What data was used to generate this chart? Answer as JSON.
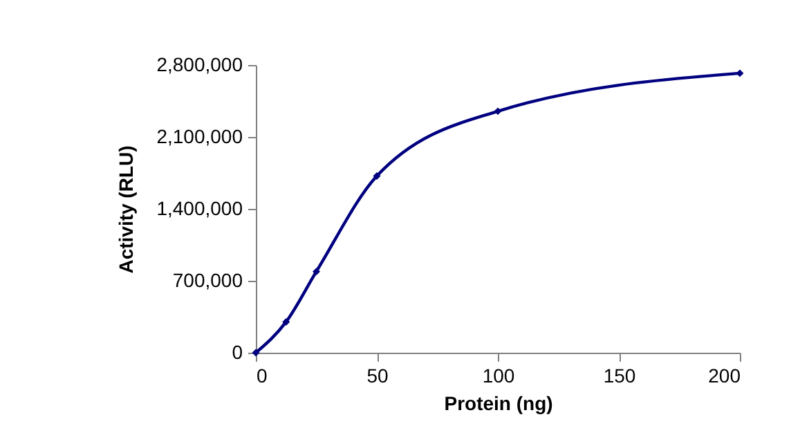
{
  "chart_data": {
    "type": "line",
    "xlabel": "Protein (ng)",
    "ylabel": "Activity (RLU)",
    "x": [
      0,
      12.5,
      25,
      50,
      100,
      200
    ],
    "series": [
      {
        "color": "#000080",
        "values": [
          0,
          300000,
          790000,
          1720000,
          2350000,
          2720000
        ]
      }
    ],
    "xlim": [
      0,
      200
    ],
    "xticks": [
      0,
      50,
      100,
      150,
      200
    ],
    "ylim": [
      0,
      2800000
    ],
    "yticks": [
      0,
      {
        "value": 700000,
        "label": "700,000"
      },
      {
        "value": 1400000,
        "label": "1,400,000"
      },
      {
        "value": 2100000,
        "label": "2,100,000"
      },
      {
        "value": 2800000,
        "label": "2,800,000"
      }
    ],
    "grid": false,
    "marker": "diamond",
    "line_style": "solid"
  }
}
